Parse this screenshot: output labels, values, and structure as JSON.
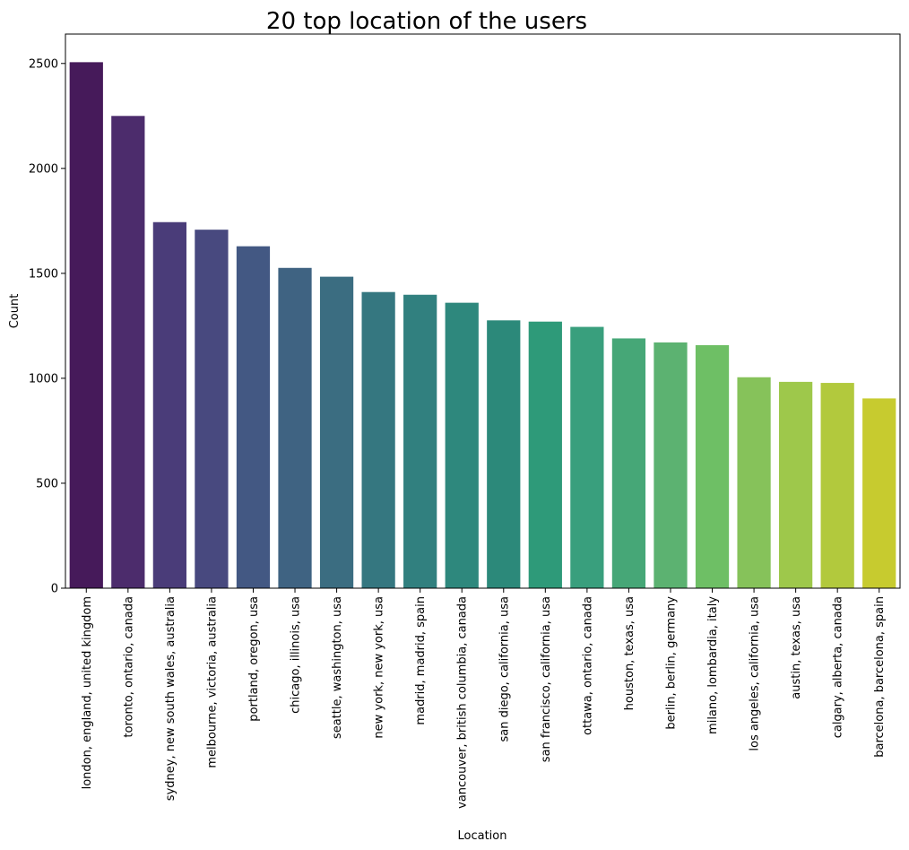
{
  "chart_data": {
    "type": "bar",
    "title": "20 top location of the users",
    "xlabel": "Location",
    "ylabel": "Count",
    "ylim": [
      0,
      2640
    ],
    "yticks": [
      0,
      500,
      1000,
      1500,
      2000,
      2500
    ],
    "grid": false,
    "legend": "none",
    "palette": "viridis",
    "categories": [
      "london, england, united kingdom",
      "toronto, ontario, canada",
      "sydney, new south wales, australia",
      "melbourne, victoria, australia",
      "portland, oregon, usa",
      "chicago, illinois, usa",
      "seattle, washington, usa",
      "new york, new york, usa",
      "madrid, madrid, spain",
      "vancouver, british columbia, canada",
      "san diego, california, usa",
      "san francisco, california, usa",
      "ottawa, ontario, canada",
      "houston, texas, usa",
      "berlin, berlin, germany",
      "milano, lombardia, italy",
      "los angeles, california, usa",
      "austin, texas, usa",
      "calgary, alberta, canada",
      "barcelona, barcelona, spain"
    ],
    "values": [
      2506,
      2250,
      1744,
      1708,
      1629,
      1526,
      1484,
      1411,
      1398,
      1360,
      1276,
      1270,
      1245,
      1190,
      1171,
      1158,
      1005,
      983,
      978,
      904
    ],
    "colors": [
      "#461a5a",
      "#4c2c6c",
      "#4a3c79",
      "#48497f",
      "#435883",
      "#3f6382",
      "#3b6d81",
      "#357780",
      "#31807f",
      "#2e887d",
      "#2c897a",
      "#2e9a79",
      "#399f7d",
      "#46a777",
      "#5cb271",
      "#6ebf65",
      "#86c25a",
      "#9ec84b",
      "#b2c93d",
      "#c7cb2f"
    ]
  }
}
